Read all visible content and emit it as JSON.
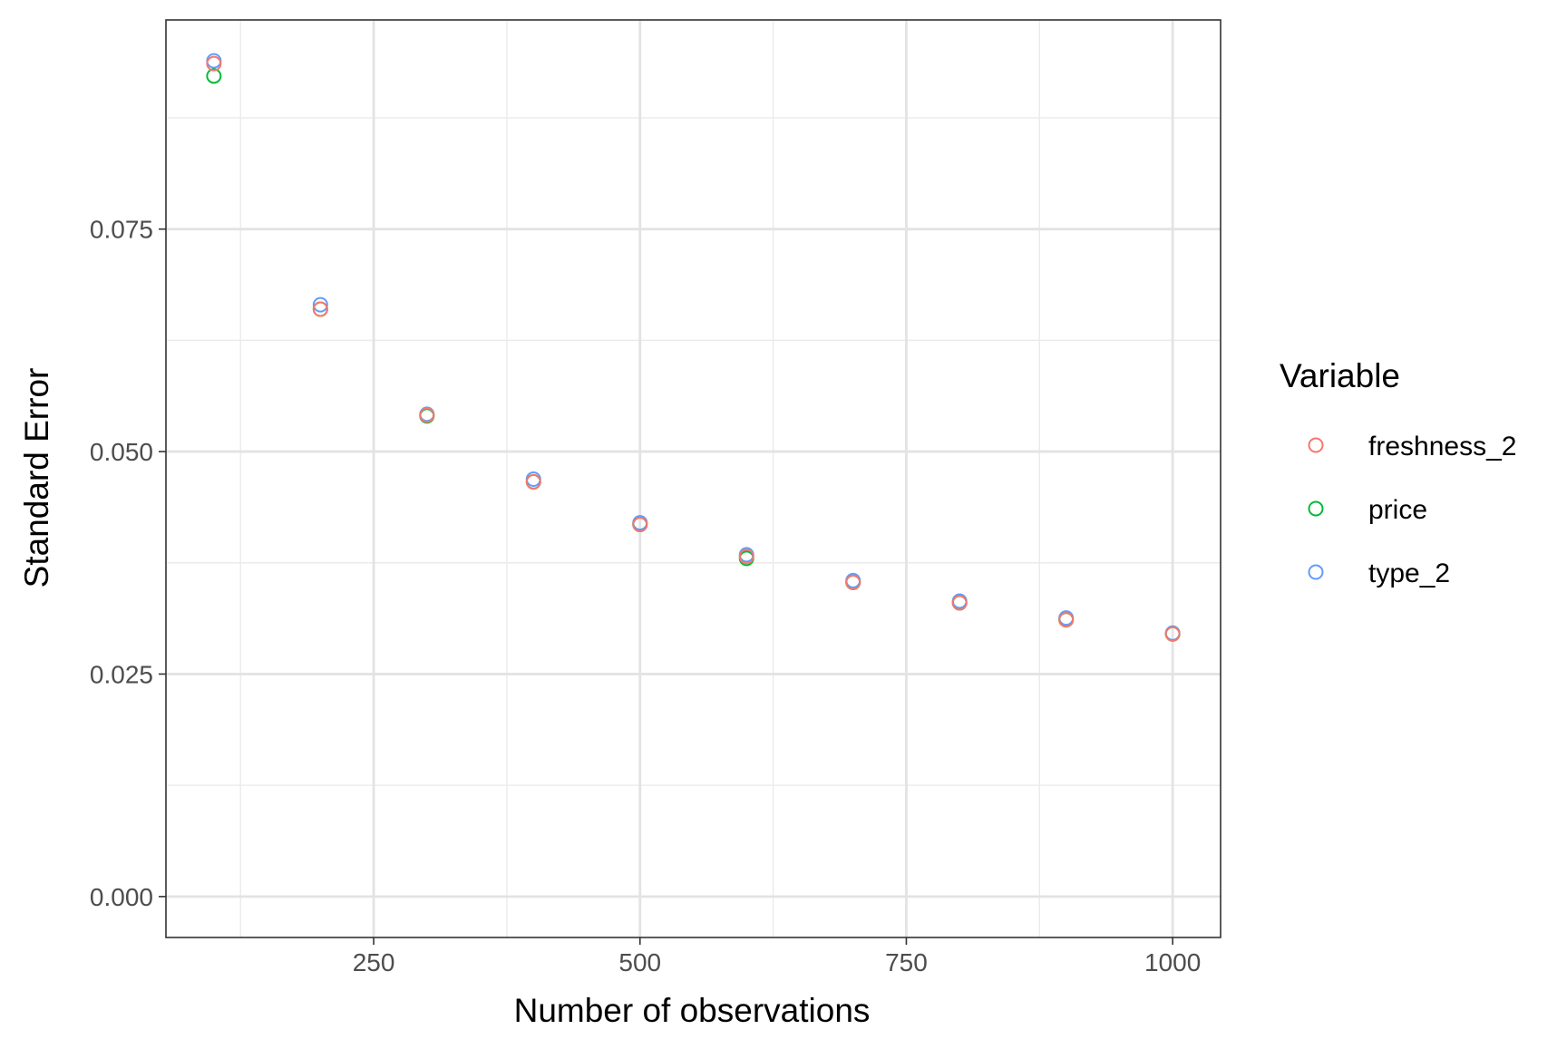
{
  "chart_data": {
    "type": "scatter",
    "title": "",
    "xlabel": "Number of observations",
    "ylabel": "Standard Error",
    "xlim": [
      55,
      1045
    ],
    "ylim": [
      -0.0046,
      0.0985
    ],
    "x_ticks": [
      250,
      500,
      750,
      1000
    ],
    "x_tick_labels": [
      "250",
      "500",
      "750",
      "1000"
    ],
    "y_ticks": [
      0.0,
      0.025,
      0.05,
      0.075
    ],
    "y_tick_labels": [
      "0.000",
      "0.025",
      "0.050",
      "0.075"
    ],
    "x_minor_ticks": [
      125,
      375,
      625,
      875
    ],
    "y_minor_ticks": [
      0.0125,
      0.0375,
      0.0625,
      0.0875
    ],
    "grid": true,
    "legend": {
      "title": "Variable",
      "position": "right"
    },
    "series": [
      {
        "name": "type_2",
        "color": "#619CFF",
        "x": [
          100,
          200,
          300,
          400,
          500,
          600,
          700,
          800,
          900,
          1000
        ],
        "y": [
          0.0939,
          0.0665,
          0.0542,
          0.0469,
          0.042,
          0.0384,
          0.0355,
          0.0332,
          0.0313,
          0.0296
        ]
      },
      {
        "name": "price",
        "color": "#00BA38",
        "x": [
          100,
          200,
          300,
          400,
          500,
          600,
          700,
          800,
          900,
          1000
        ],
        "y": [
          0.0922,
          0.066,
          0.054,
          0.0466,
          0.0418,
          0.038,
          0.0353,
          0.033,
          0.0311,
          0.0295
        ]
      },
      {
        "name": "freshness_2",
        "color": "#F8766D",
        "x": [
          100,
          200,
          300,
          400,
          500,
          600,
          700,
          800,
          900,
          1000
        ],
        "y": [
          0.0936,
          0.066,
          0.0541,
          0.0466,
          0.0418,
          0.0382,
          0.0353,
          0.033,
          0.0311,
          0.0295
        ]
      }
    ],
    "legend_order": [
      "freshness_2",
      "price",
      "type_2"
    ]
  }
}
